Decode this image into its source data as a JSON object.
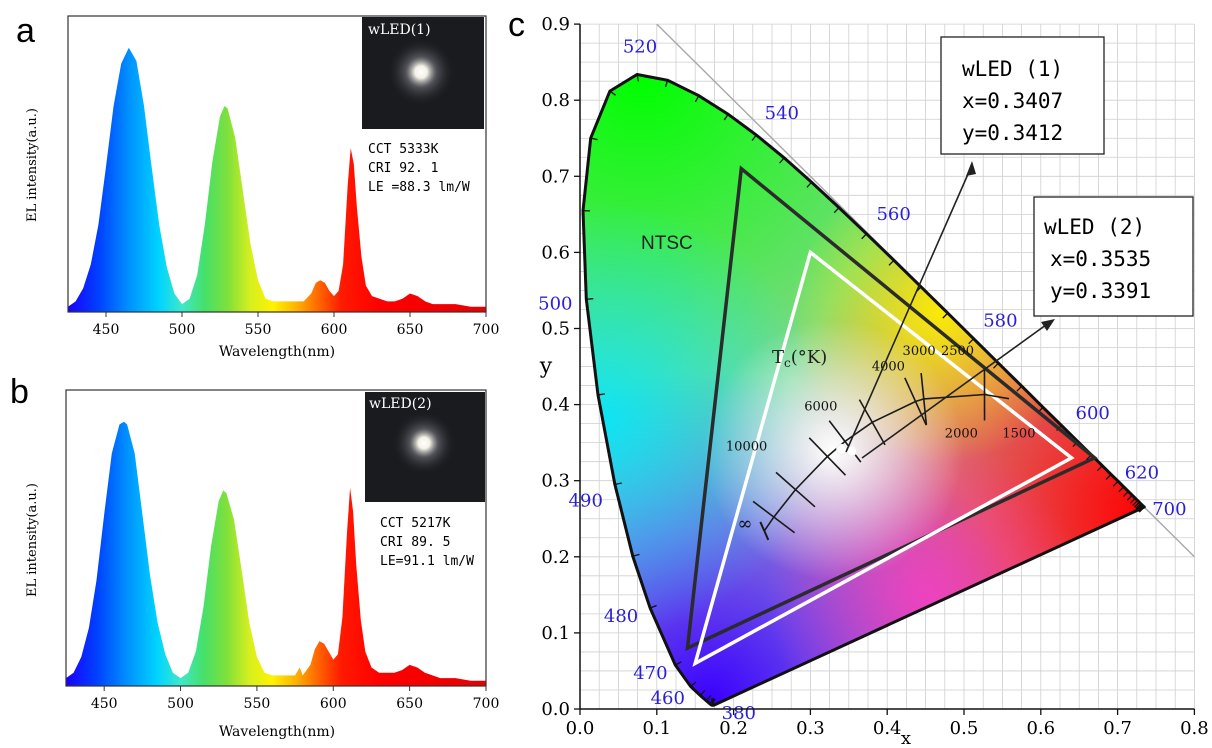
{
  "figure": {
    "panel_a": {
      "letter": "a",
      "ylabel": "EL intensity(a.u.)",
      "xlabel": "Wavelength(nm)",
      "xticks": [
        "450",
        "500",
        "550",
        "600",
        "650",
        "700"
      ],
      "inset_label": "wLED(1)",
      "stats": [
        "CCT  5333K",
        "CRI  92. 1",
        "LE =88.3 lm/W"
      ]
    },
    "panel_b": {
      "letter": "b",
      "ylabel": "EL intensity(a.u.)",
      "xlabel": "Wavelength(nm)",
      "xticks": [
        "450",
        "500",
        "550",
        "600",
        "650",
        "700"
      ],
      "inset_label": "wLED(2)",
      "stats": [
        "CCT  5217K",
        "CRI  89. 5",
        "LE=91.1 lm/W"
      ]
    },
    "panel_c": {
      "letter": "c",
      "xlabel": "x",
      "ylabel": "y",
      "xticks": [
        "0.0",
        "0.1",
        "0.2",
        "0.3",
        "0.4",
        "0.5",
        "0.6",
        "0.7",
        "0.8"
      ],
      "yticks": [
        "0.0",
        "0.1",
        "0.2",
        "0.3",
        "0.4",
        "0.5",
        "0.6",
        "0.7",
        "0.8",
        "0.9"
      ],
      "ntsc_label": "NTSC",
      "tc_label_main": "T",
      "tc_label_sub": "c",
      "tc_label_unit": "(°K)",
      "box1": [
        "wLED (1)",
        "x=0.3407",
        "y=0.3412"
      ],
      "box2": [
        "wLED (2)",
        "x=0.3535",
        "y=0.3391"
      ]
    }
  },
  "chart_data": [
    {
      "type": "line",
      "panel": "a",
      "title": "",
      "xlabel": "Wavelength(nm)",
      "ylabel": "EL intensity(a.u.)",
      "xlim": [
        425,
        700
      ],
      "ylim": [
        0,
        1.12
      ],
      "series": [
        {
          "x": [
            425,
            430,
            435,
            440,
            445,
            450,
            455,
            460,
            465,
            470,
            475,
            480,
            485,
            490,
            495,
            500,
            505,
            510,
            515,
            520,
            525,
            528,
            530,
            535,
            540,
            545,
            550,
            555,
            560,
            565,
            570,
            575,
            580,
            585,
            588,
            591,
            594,
            597,
            600,
            603,
            606,
            609,
            611,
            613,
            615,
            618,
            621,
            625,
            630,
            635,
            640,
            645,
            650,
            655,
            660,
            665,
            670,
            680,
            690,
            700
          ],
          "y": [
            0.02,
            0.04,
            0.09,
            0.18,
            0.33,
            0.55,
            0.78,
            0.94,
            1.0,
            0.95,
            0.78,
            0.55,
            0.33,
            0.17,
            0.07,
            0.03,
            0.05,
            0.14,
            0.33,
            0.57,
            0.74,
            0.78,
            0.77,
            0.66,
            0.46,
            0.26,
            0.12,
            0.05,
            0.04,
            0.04,
            0.04,
            0.04,
            0.04,
            0.07,
            0.11,
            0.12,
            0.11,
            0.08,
            0.06,
            0.08,
            0.18,
            0.48,
            0.62,
            0.56,
            0.4,
            0.21,
            0.1,
            0.06,
            0.05,
            0.04,
            0.04,
            0.05,
            0.07,
            0.06,
            0.04,
            0.03,
            0.03,
            0.03,
            0.02,
            0.02
          ]
        }
      ]
    },
    {
      "type": "line",
      "panel": "b",
      "title": "",
      "xlabel": "Wavelength(nm)",
      "ylabel": "EL intensity(a.u.)",
      "xlim": [
        425,
        700
      ],
      "ylim": [
        0,
        1.12
      ],
      "series": [
        {
          "x": [
            425,
            430,
            435,
            440,
            445,
            450,
            455,
            460,
            463,
            465,
            470,
            475,
            480,
            485,
            490,
            495,
            500,
            505,
            510,
            515,
            520,
            525,
            528,
            530,
            535,
            540,
            545,
            550,
            555,
            560,
            565,
            570,
            575,
            578,
            580,
            585,
            588,
            591,
            594,
            597,
            600,
            603,
            606,
            609,
            611,
            613,
            615,
            618,
            621,
            625,
            630,
            635,
            640,
            645,
            650,
            655,
            660,
            665,
            670,
            680,
            690,
            700
          ],
          "y": [
            0.03,
            0.05,
            0.11,
            0.22,
            0.4,
            0.65,
            0.88,
            0.99,
            1.0,
            0.99,
            0.88,
            0.65,
            0.42,
            0.24,
            0.12,
            0.05,
            0.03,
            0.05,
            0.13,
            0.3,
            0.53,
            0.7,
            0.74,
            0.73,
            0.63,
            0.44,
            0.24,
            0.11,
            0.05,
            0.04,
            0.04,
            0.04,
            0.04,
            0.07,
            0.04,
            0.08,
            0.14,
            0.17,
            0.16,
            0.13,
            0.1,
            0.12,
            0.26,
            0.58,
            0.75,
            0.66,
            0.46,
            0.25,
            0.13,
            0.07,
            0.05,
            0.05,
            0.05,
            0.06,
            0.08,
            0.07,
            0.05,
            0.04,
            0.03,
            0.03,
            0.02,
            0.02
          ]
        }
      ]
    },
    {
      "type": "scatter",
      "panel": "c",
      "title": "",
      "xlabel": "x",
      "ylabel": "y",
      "xlim": [
        0,
        0.8
      ],
      "ylim": [
        0,
        0.9
      ],
      "grid": true,
      "spectral_locus": {
        "x": [
          0.1741,
          0.1738,
          0.1736,
          0.1733,
          0.1726,
          0.1714,
          0.1689,
          0.1644,
          0.1566,
          0.144,
          0.1241,
          0.0913,
          0.0687,
          0.0454,
          0.0235,
          0.0082,
          0.0039,
          0.0139,
          0.0389,
          0.0743,
          0.1142,
          0.1547,
          0.1929,
          0.2296,
          0.2658,
          0.3016,
          0.3373,
          0.3731,
          0.4087,
          0.4441,
          0.4788,
          0.5125,
          0.5448,
          0.5752,
          0.6029,
          0.627,
          0.6482,
          0.6658,
          0.6801,
          0.6915,
          0.7006,
          0.7079,
          0.714,
          0.719,
          0.723,
          0.726,
          0.7283,
          0.73,
          0.7311,
          0.732,
          0.7327,
          0.7334,
          0.734,
          0.7344,
          0.7346,
          0.7347
        ],
        "y": [
          0.005,
          0.0049,
          0.0049,
          0.0048,
          0.0048,
          0.0051,
          0.0069,
          0.0109,
          0.0177,
          0.0297,
          0.0578,
          0.1327,
          0.2007,
          0.295,
          0.4127,
          0.5384,
          0.6548,
          0.7502,
          0.812,
          0.8338,
          0.8262,
          0.8059,
          0.7816,
          0.7543,
          0.7243,
          0.6923,
          0.6589,
          0.6245,
          0.5896,
          0.5547,
          0.5202,
          0.4866,
          0.4544,
          0.4242,
          0.3965,
          0.3725,
          0.3514,
          0.334,
          0.3197,
          0.3083,
          0.2993,
          0.292,
          0.2859,
          0.2809,
          0.277,
          0.274,
          0.2717,
          0.27,
          0.2689,
          0.268,
          0.2673,
          0.2666,
          0.266,
          0.2656,
          0.2654,
          0.2653
        ],
        "wavelengths": [
          380,
          385,
          390,
          395,
          400,
          405,
          410,
          415,
          420,
          425,
          430,
          435,
          440,
          445,
          450,
          455,
          460,
          465,
          470,
          475,
          480,
          485,
          490,
          495,
          500,
          505,
          510,
          515,
          520,
          525,
          530,
          535,
          540,
          545,
          550,
          555,
          560,
          565,
          570,
          575,
          580,
          585,
          590,
          595,
          600,
          605,
          610,
          615,
          620,
          625,
          630,
          635,
          640,
          650,
          680,
          700
        ]
      },
      "wavelength_labels": [
        {
          "text": "520",
          "x": 0.074,
          "y": 0.834
        },
        {
          "text": "540",
          "x": 0.23,
          "y": 0.754
        },
        {
          "text": "560",
          "x": 0.373,
          "y": 0.624
        },
        {
          "text": "580",
          "x": 0.512,
          "y": 0.487
        },
        {
          "text": "600",
          "x": 0.627,
          "y": 0.373
        },
        {
          "text": "620",
          "x": 0.691,
          "y": 0.308
        },
        {
          "text": "700",
          "x": 0.7347,
          "y": 0.2653
        },
        {
          "text": "500",
          "x": 0.008,
          "y": 0.538
        },
        {
          "text": "490",
          "x": 0.045,
          "y": 0.295
        },
        {
          "text": "480",
          "x": 0.091,
          "y": 0.133
        },
        {
          "text": "470",
          "x": 0.124,
          "y": 0.058
        },
        {
          "text": "460",
          "x": 0.144,
          "y": 0.03
        },
        {
          "text": "380",
          "x": 0.174,
          "y": 0.005
        }
      ],
      "ntsc_triangle": [
        [
          0.67,
          0.33
        ],
        [
          0.21,
          0.71
        ],
        [
          0.14,
          0.08
        ]
      ],
      "srgb_triangle": [
        [
          0.64,
          0.33
        ],
        [
          0.3,
          0.6
        ],
        [
          0.15,
          0.06
        ]
      ],
      "series": [
        {
          "name": "wLED (1)",
          "x": [
            0.3407
          ],
          "y": [
            0.3412
          ]
        },
        {
          "name": "wLED (2)",
          "x": [
            0.3535
          ],
          "y": [
            0.3391
          ]
        }
      ],
      "planckian_locus": {
        "x": [
          0.24,
          0.2524,
          0.2806,
          0.3221,
          0.3451,
          0.3805,
          0.4369,
          0.4476,
          0.5267,
          0.5586
        ],
        "y": [
          0.234,
          0.2522,
          0.2883,
          0.3318,
          0.3516,
          0.3768,
          0.4041,
          0.4075,
          0.4133,
          0.4077
        ],
        "cct_labels": [
          "∞",
          "10000",
          "6000",
          "4000",
          "3000",
          "2500",
          "2000",
          "1500"
        ]
      }
    }
  ]
}
